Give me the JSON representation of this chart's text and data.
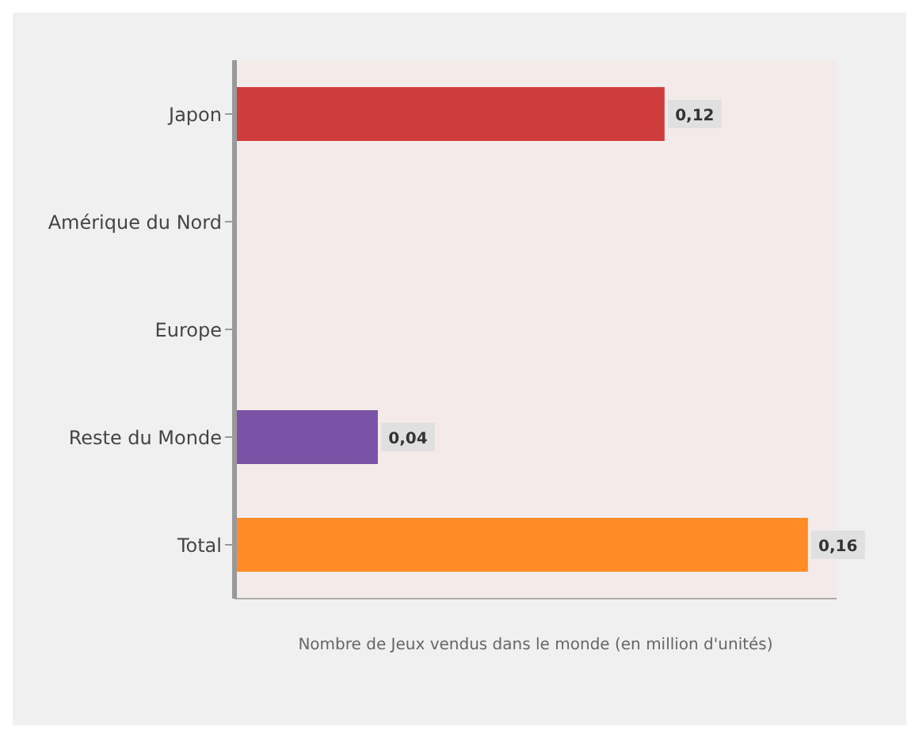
{
  "chart_data": {
    "type": "bar",
    "orientation": "horizontal",
    "xlabel": "Nombre de Jeux vendus dans le monde (en million d'unités)",
    "categories": [
      "Japon",
      "Amérique du Nord",
      "Europe",
      "Reste du Monde",
      "Total"
    ],
    "values": [
      0.12,
      0,
      0,
      0.04,
      0.16
    ],
    "colors": [
      "#cf3c3c",
      "#1f4e79",
      "#4f6228",
      "#7b53a6",
      "#ff8c26"
    ],
    "value_labels": [
      "0,12",
      null,
      null,
      "0,04",
      "0,16"
    ],
    "xlim": [
      0,
      0.168
    ],
    "tick_labels": "y",
    "legend": false
  }
}
